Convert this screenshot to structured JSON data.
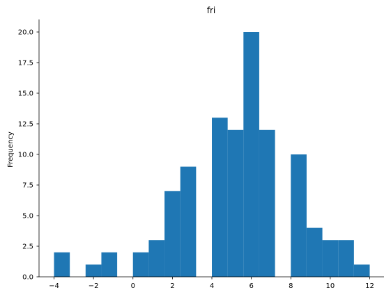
{
  "chart_data": {
    "type": "bar",
    "title": "fri",
    "xlabel": "",
    "ylabel": "Frequency",
    "color": "#1f77b4",
    "xlim": [
      -4.5,
      12.5
    ],
    "ylim": [
      0,
      21
    ],
    "bin_width": 0.8,
    "bins": [
      {
        "left": -4.0,
        "value": 2
      },
      {
        "left": -2.4,
        "value": 1
      },
      {
        "left": -1.6,
        "value": 2
      },
      {
        "left": 0.0,
        "value": 2
      },
      {
        "left": 0.8,
        "value": 3
      },
      {
        "left": 1.6,
        "value": 7
      },
      {
        "left": 2.4,
        "value": 9
      },
      {
        "left": 4.0,
        "value": 13
      },
      {
        "left": 4.8,
        "value": 12
      },
      {
        "left": 5.6,
        "value": 20
      },
      {
        "left": 6.4,
        "value": 12
      },
      {
        "left": 8.0,
        "value": 10
      },
      {
        "left": 8.8,
        "value": 4
      },
      {
        "left": 9.6,
        "value": 3
      },
      {
        "left": 10.4,
        "value": 3
      },
      {
        "left": 11.2,
        "value": 1
      }
    ],
    "x_ticks": [
      -4,
      -2,
      0,
      2,
      4,
      6,
      8,
      10,
      12
    ],
    "x_tick_labels": [
      "−4",
      "−2",
      "0",
      "2",
      "4",
      "6",
      "8",
      "10",
      "12"
    ],
    "y_ticks": [
      0,
      2.5,
      5,
      7.5,
      10,
      12.5,
      15,
      17.5,
      20
    ],
    "y_tick_labels": [
      "0.0",
      "2.5",
      "5.0",
      "7.5",
      "10.0",
      "12.5",
      "15.0",
      "17.5",
      "20.0"
    ],
    "grid": false,
    "spines": [
      "left",
      "bottom"
    ]
  }
}
